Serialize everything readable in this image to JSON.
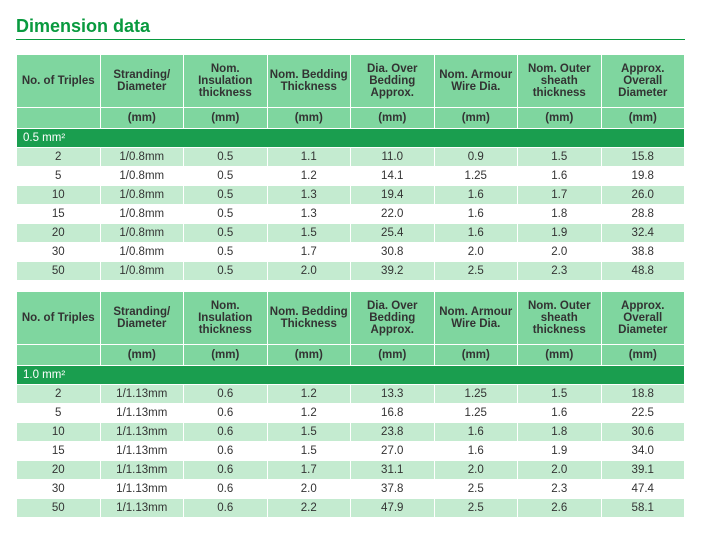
{
  "title": "Dimension data",
  "columns": [
    "No. of Triples",
    "Stranding/ Diameter",
    "Nom. Insulation thickness",
    "Nom. Bedding Thickness",
    "Dia. Over Bedding Approx.",
    "Nom. Armour Wire Dia.",
    "Nom. Outer sheath thickness",
    "Approx. Overall Diameter"
  ],
  "units": [
    "",
    "(mm)",
    "(mm)",
    "(mm)",
    "(mm)",
    "(mm)",
    "(mm)",
    "(mm)"
  ],
  "sections": [
    {
      "label": "0.5 mm²",
      "rows": [
        [
          "2",
          "1/0.8mm",
          "0.5",
          "1.1",
          "11.0",
          "0.9",
          "1.5",
          "15.8"
        ],
        [
          "5",
          "1/0.8mm",
          "0.5",
          "1.2",
          "14.1",
          "1.25",
          "1.6",
          "19.8"
        ],
        [
          "10",
          "1/0.8mm",
          "0.5",
          "1.3",
          "19.4",
          "1.6",
          "1.7",
          "26.0"
        ],
        [
          "15",
          "1/0.8mm",
          "0.5",
          "1.3",
          "22.0",
          "1.6",
          "1.8",
          "28.8"
        ],
        [
          "20",
          "1/0.8mm",
          "0.5",
          "1.5",
          "25.4",
          "1.6",
          "1.9",
          "32.4"
        ],
        [
          "30",
          "1/0.8mm",
          "0.5",
          "1.7",
          "30.8",
          "2.0",
          "2.0",
          "38.8"
        ],
        [
          "50",
          "1/0.8mm",
          "0.5",
          "2.0",
          "39.2",
          "2.5",
          "2.3",
          "48.8"
        ]
      ]
    },
    {
      "label": "1.0 mm²",
      "rows": [
        [
          "2",
          "1/1.13mm",
          "0.6",
          "1.2",
          "13.3",
          "1.25",
          "1.5",
          "18.8"
        ],
        [
          "5",
          "1/1.13mm",
          "0.6",
          "1.2",
          "16.8",
          "1.25",
          "1.6",
          "22.5"
        ],
        [
          "10",
          "1/1.13mm",
          "0.6",
          "1.5",
          "23.8",
          "1.6",
          "1.8",
          "30.6"
        ],
        [
          "15",
          "1/1.13mm",
          "0.6",
          "1.5",
          "27.0",
          "1.6",
          "1.9",
          "34.0"
        ],
        [
          "20",
          "1/1.13mm",
          "0.6",
          "1.7",
          "31.1",
          "2.0",
          "2.0",
          "39.1"
        ],
        [
          "30",
          "1/1.13mm",
          "0.6",
          "2.0",
          "37.8",
          "2.5",
          "2.3",
          "47.4"
        ],
        [
          "50",
          "1/1.13mm",
          "0.6",
          "2.2",
          "47.9",
          "2.5",
          "2.6",
          "58.1"
        ]
      ]
    }
  ],
  "colors": {
    "title": "#099a3f",
    "header_bg": "#7fd69f",
    "section_bg": "#1a9e4f",
    "row_even_bg": "#c4ebd0",
    "row_odd_bg": "#ffffff",
    "border": "#ffffff",
    "text": "#333333"
  },
  "fontsize": {
    "title_pt": 18,
    "body_pt": 11.5
  }
}
